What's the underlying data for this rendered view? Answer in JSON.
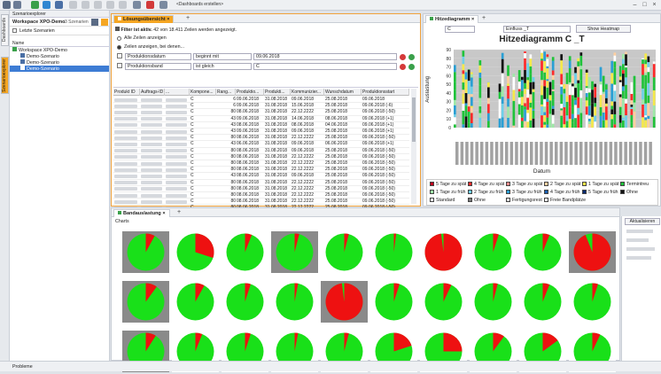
{
  "toolbar": {
    "dashboard_label": "<Dashboards erstellen>"
  },
  "left_tabs": {
    "dashboards": "Dashboards",
    "explorer": "Szenarioexplorer"
  },
  "explorer": {
    "header": "Szenarioexplorer",
    "workspace_title": "Workspace XPO-Demo",
    "scenario_count": "3 Szenarien",
    "recent": "Letzte Szenarien",
    "name_col": "Name",
    "tree": [
      "Workspace XPO-Demo",
      "Demo-Szenario",
      "Demo-Szenario",
      "Demo-Szenario"
    ]
  },
  "solution": {
    "tab": "Lösungsübersicht",
    "filter_status": "Filter ist aktiv.",
    "filter_info": "42 von 18.411 Zeilen werden angezeigt.",
    "opt_all": "Alle Zeilen anzeigen",
    "opt_filtered": "Zeilen anzeigen, bei denen...",
    "rows": [
      {
        "field": "Produktionsdatum",
        "op": "beginnt mit",
        "value": "09.06.2018"
      },
      {
        "field": "Produktionsband",
        "op": "ist gleich",
        "value": "C"
      }
    ],
    "columns": [
      "Produkt ID",
      "Auftrags-ID",
      "...",
      "Kompone...",
      "Rang...",
      "Produktio...",
      "Produkti...",
      "Kommunizier...",
      "Wunschdatum",
      "Produktionsstart"
    ],
    "grid": [
      [
        "C",
        "6",
        "09.06.2018",
        "31.08.2018",
        "09.06.2018",
        "25.08.2018",
        "09.06.2018"
      ],
      [
        "C",
        "6",
        "09.06.2018",
        "31.08.2018",
        "15.06.2018",
        "25.08.2018",
        "09.06.2018 (-6)"
      ],
      [
        "C",
        "80",
        "08.06.2018",
        "31.08.2018",
        "22.12.2222",
        "25.08.2018",
        "09.06.2018 (-50)"
      ],
      [
        "C",
        "43",
        "09.06.2018",
        "31.08.2018",
        "14.06.2018",
        "08.06.2018",
        "09.06.2018 (+1)"
      ],
      [
        "C",
        "43",
        "08.06.2018",
        "31.08.2018",
        "08.06.2018",
        "04.06.2018",
        "09.06.2018 (+1)"
      ],
      [
        "C",
        "43",
        "09.06.2018",
        "31.08.2018",
        "09.06.2018",
        "25.08.2018",
        "09.06.2018 (+1)"
      ],
      [
        "C",
        "80",
        "08.06.2018",
        "31.08.2018",
        "22.12.2222",
        "25.08.2018",
        "09.06.2018 (-50)"
      ],
      [
        "C",
        "43",
        "06.06.2018",
        "31.08.2018",
        "09.06.2018",
        "06.06.2018",
        "09.06.2018 (+1)"
      ],
      [
        "C",
        "80",
        "08.06.2018",
        "31.08.2018",
        "09.06.2018",
        "25.08.2018",
        "09.06.2018 (-50)"
      ],
      [
        "C",
        "80",
        "08.06.2018",
        "31.08.2018",
        "22.12.2222",
        "25.08.2018",
        "09.06.2018 (-50)"
      ],
      [
        "C",
        "80",
        "08.06.2018",
        "31.08.2018",
        "22.12.2222",
        "25.08.2018",
        "09.06.2018 (-50)"
      ],
      [
        "C",
        "80",
        "08.06.2018",
        "31.08.2018",
        "22.12.2222",
        "25.08.2018",
        "09.06.2018 (-50)"
      ],
      [
        "C",
        "43",
        "08.06.2018",
        "31.08.2018",
        "09.06.2018",
        "25.08.2018",
        "09.06.2018 (-50)"
      ],
      [
        "C",
        "80",
        "08.06.2018",
        "31.08.2018",
        "22.12.2222",
        "25.08.2018",
        "09.06.2018 (-50)"
      ],
      [
        "C",
        "80",
        "08.06.2018",
        "31.08.2018",
        "22.12.2222",
        "25.08.2018",
        "09.06.2018 (-50)"
      ],
      [
        "C",
        "80",
        "08.06.2018",
        "31.08.2018",
        "22.12.2222",
        "25.08.2018",
        "09.06.2018 (-50)"
      ],
      [
        "C",
        "80",
        "08.06.2018",
        "31.08.2018",
        "22.12.2222",
        "25.08.2018",
        "09.06.2018 (-50)"
      ],
      [
        "C",
        "80",
        "08.06.2018",
        "31.08.2018",
        "22.12.2222",
        "25.08.2018",
        "09.06.2018 (-50)"
      ],
      [
        "C",
        "80",
        "08.06.2018",
        "31.08.2018",
        "22.12.2222",
        "25.08.2018",
        "09.06.2018 (-50)"
      ]
    ]
  },
  "heatmap": {
    "tab": "Hitzediagramm",
    "select_value": "C",
    "select2_value": "Einfluss _T",
    "show_button": "Show Heatmap",
    "chart_title": "Hitzediagramm C _T",
    "ylabel": "Auslastung",
    "xlabel": "Datum",
    "legend": [
      {
        "label": "5 Tage zu spät",
        "color": "#c0001a"
      },
      {
        "label": "4 Tage zu spät",
        "color": "#ff2a2a"
      },
      {
        "label": "3 Tage zu spät",
        "color": "#ff8a8a"
      },
      {
        "label": "2 Tage zu spät",
        "color": "#ffd0a0"
      },
      {
        "label": "1 Tage zu spät",
        "color": "#f5e94a"
      },
      {
        "label": "Termintreu",
        "color": "#1fc33a"
      },
      {
        "label": "1 Tage zu früh",
        "color": "#9fe8a8"
      },
      {
        "label": "2 Tage zu früh",
        "color": "#6fd0e8"
      },
      {
        "label": "3 Tage zu früh",
        "color": "#2a9fd4"
      },
      {
        "label": "4 Tage zu früh",
        "color": "#1a5fb0"
      },
      {
        "label": "5 Tage zu früh",
        "color": "#0a2a70"
      },
      {
        "label": "Ohne",
        "color": "#111111"
      },
      {
        "label": "Standard",
        "color": "#ffffff"
      },
      {
        "label": "Ohne",
        "color": "#7a7a7a"
      },
      {
        "label": "Fertigungsrest",
        "color": "#dddddd"
      },
      {
        "label": "Freie Bandplätze",
        "color": "#f5f5f5"
      }
    ]
  },
  "band": {
    "tab": "Bandauslastung",
    "charts_label": "Charts",
    "update_button": "Aktualisieren",
    "pies": [
      0.08,
      0.3,
      0.06,
      0.04,
      0.04,
      0.02,
      0.98,
      0.05,
      0.06,
      0.94,
      0.1,
      0.08,
      0.05,
      0.03,
      0.98,
      0.05,
      0.07,
      0.04,
      0.06,
      0.05,
      0.09,
      0.06,
      0.05,
      0.03,
      0.04,
      0.2,
      0.25,
      0.1,
      0.15,
      0.07
    ],
    "greyed": [
      0,
      3,
      9,
      10,
      14,
      20
    ]
  },
  "status": {
    "problems": "Probleme"
  }
}
